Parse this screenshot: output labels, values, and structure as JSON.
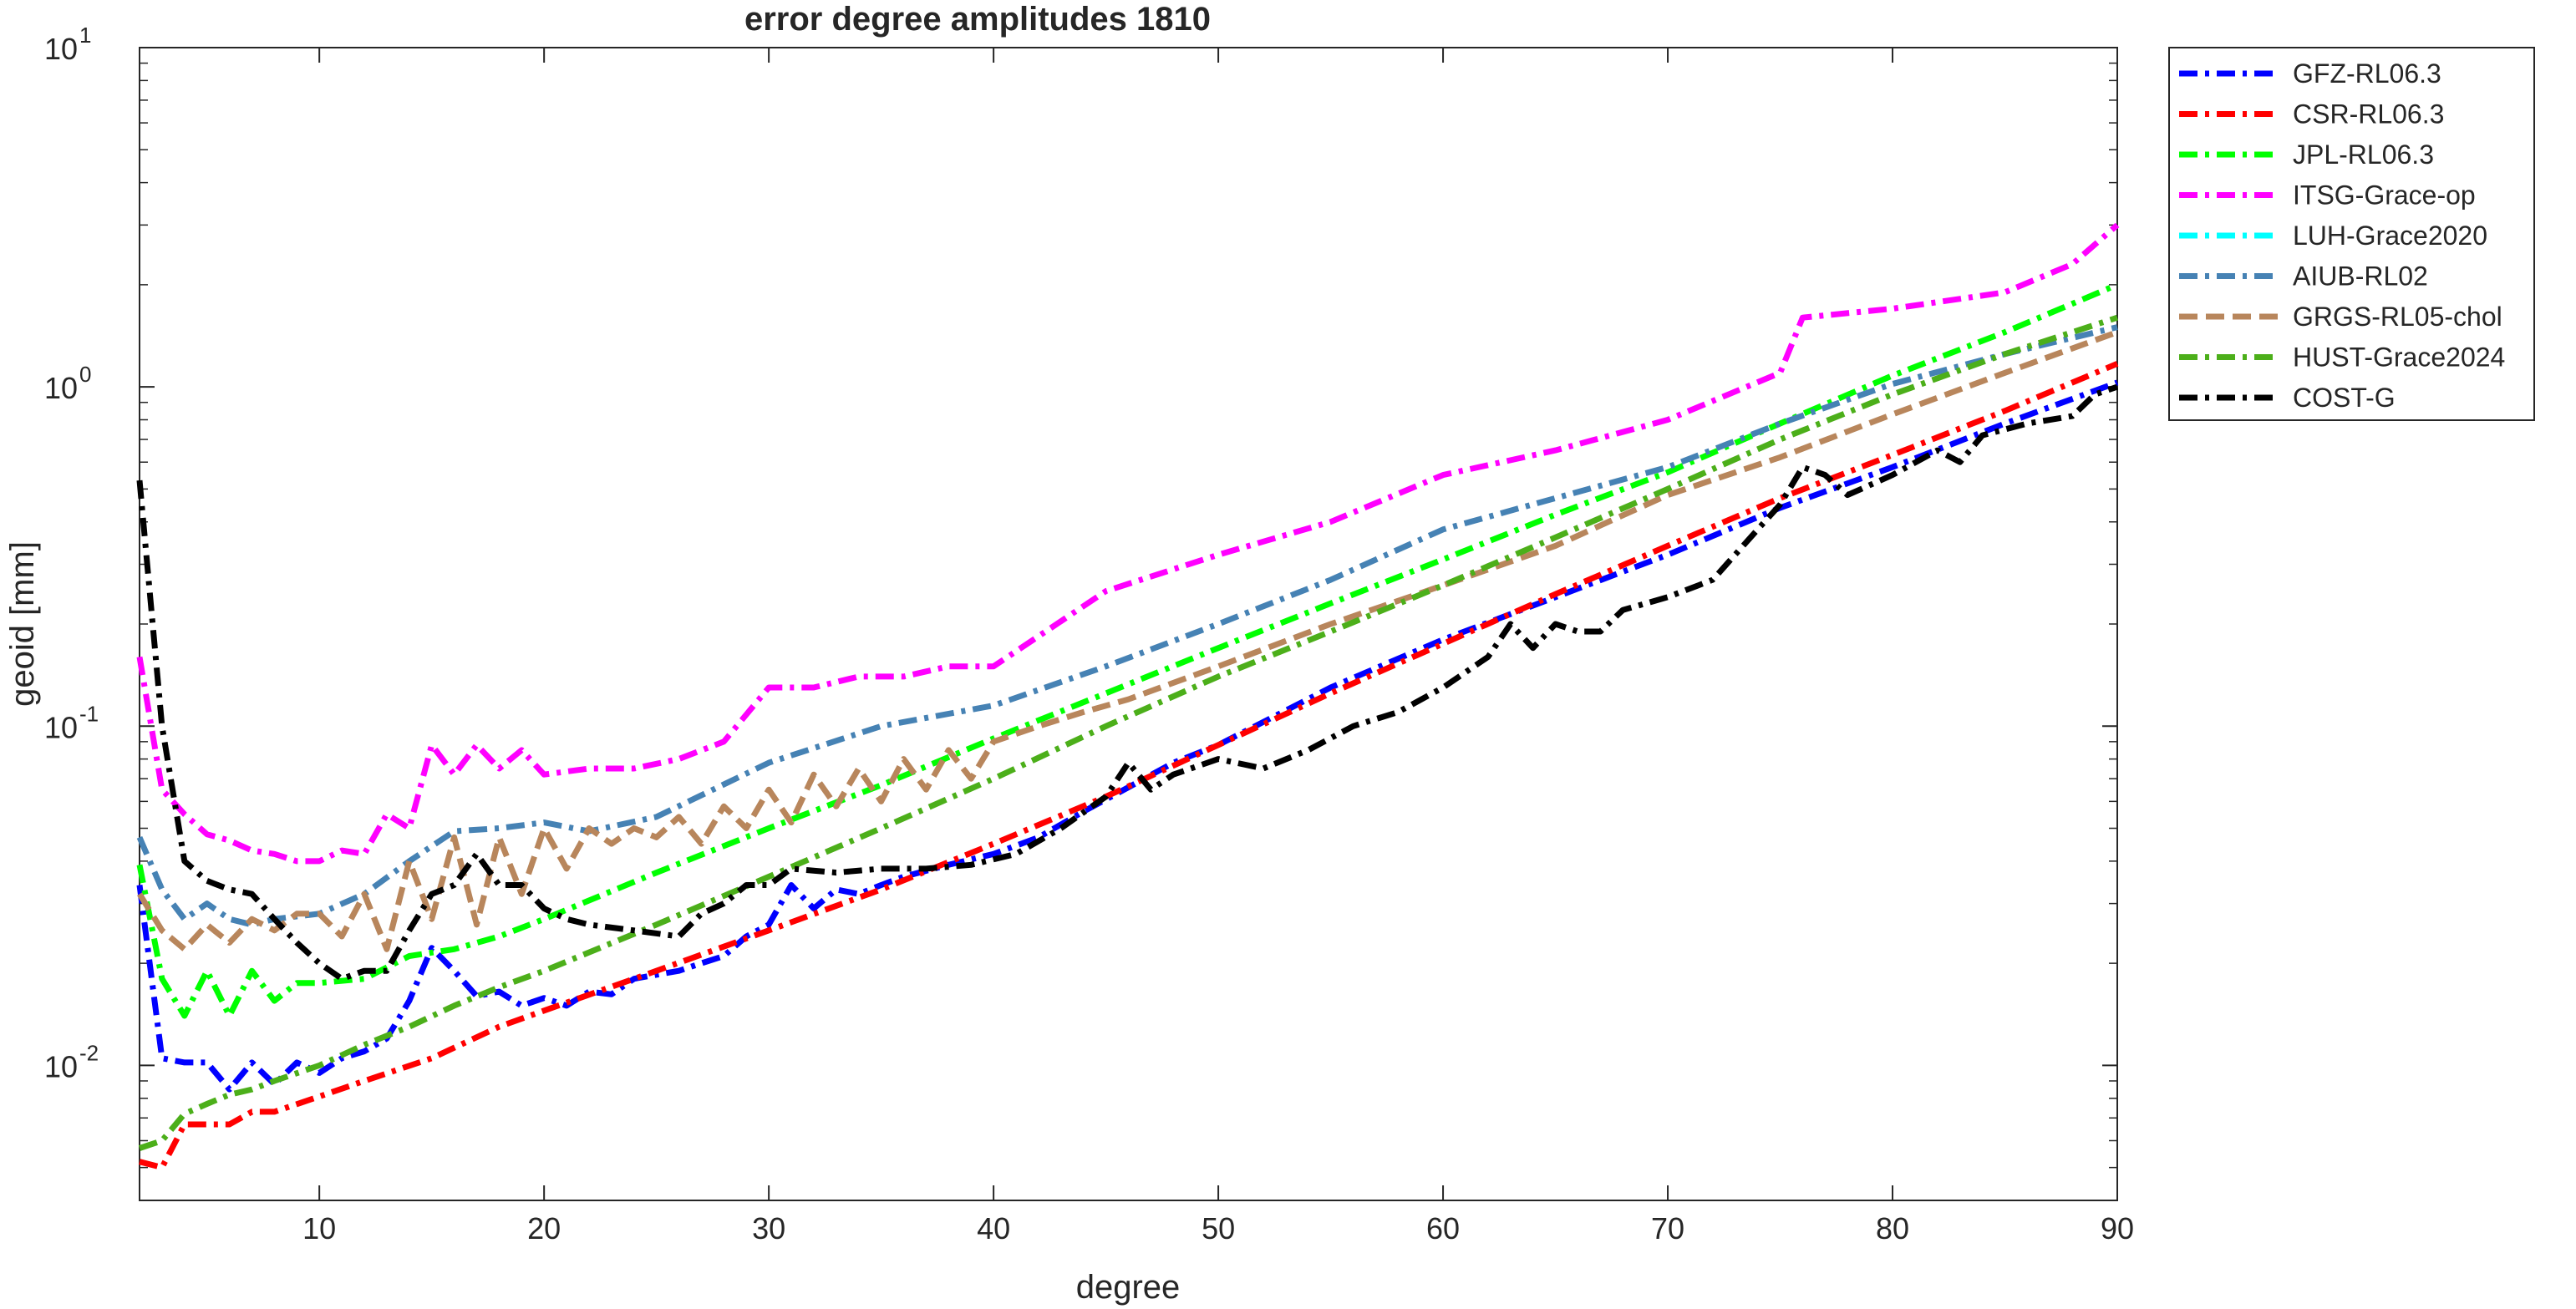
{
  "chart_data": {
    "type": "line",
    "title": "error degree amplitudes 1810",
    "xlabel": "degree",
    "ylabel": "geoid [mm]",
    "xlim": [
      2,
      90
    ],
    "ylim": [
      0.004,
      10
    ],
    "yscale": "log",
    "grid": false,
    "legend_position": "outside-top-right",
    "x_ticks": [
      10,
      20,
      30,
      40,
      50,
      60,
      70,
      80,
      90
    ],
    "y_ticks": [
      {
        "value": 0.01,
        "base": "10",
        "exp": "-2"
      },
      {
        "value": 0.1,
        "base": "10",
        "exp": "-1"
      },
      {
        "value": 1,
        "base": "10",
        "exp": "0"
      },
      {
        "value": 10,
        "base": "10",
        "exp": "1"
      }
    ],
    "series": [
      {
        "name": "GFZ-RL06.3",
        "color": "#0000ff",
        "dash": "dashdot",
        "x": [
          2,
          3,
          4,
          5,
          6,
          7,
          8,
          9,
          10,
          11,
          12,
          13,
          14,
          15,
          16,
          17,
          18,
          19,
          20,
          21,
          22,
          23,
          24,
          25,
          26,
          27,
          28,
          29,
          30,
          31,
          32,
          33,
          34,
          35,
          36,
          38,
          40,
          42,
          44,
          46,
          48,
          50,
          55,
          60,
          65,
          70,
          75,
          80,
          85,
          90
        ],
        "y": [
          0.034,
          0.0105,
          0.0102,
          0.0102,
          0.0085,
          0.0102,
          0.0088,
          0.0102,
          0.0095,
          0.0105,
          0.011,
          0.012,
          0.0155,
          0.0222,
          0.019,
          0.016,
          0.0165,
          0.015,
          0.0158,
          0.015,
          0.0165,
          0.0162,
          0.018,
          0.0185,
          0.019,
          0.02,
          0.021,
          0.024,
          0.026,
          0.034,
          0.029,
          0.033,
          0.032,
          0.034,
          0.036,
          0.039,
          0.042,
          0.047,
          0.056,
          0.066,
          0.078,
          0.088,
          0.13,
          0.18,
          0.24,
          0.32,
          0.44,
          0.58,
          0.78,
          1.03
        ]
      },
      {
        "name": "CSR-RL06.3",
        "color": "#ff0000",
        "dash": "dashdot",
        "x": [
          2,
          3,
          4,
          5,
          6,
          7,
          8,
          10,
          12,
          15,
          18,
          20,
          25,
          30,
          35,
          40,
          45,
          50,
          55,
          60,
          65,
          70,
          75,
          80,
          85,
          90
        ],
        "y": [
          0.0052,
          0.005,
          0.0067,
          0.0067,
          0.0067,
          0.0073,
          0.0073,
          0.0081,
          0.009,
          0.0105,
          0.013,
          0.0145,
          0.019,
          0.025,
          0.033,
          0.045,
          0.062,
          0.088,
          0.125,
          0.175,
          0.245,
          0.34,
          0.47,
          0.63,
          0.85,
          1.17
        ]
      },
      {
        "name": "JPL-RL06.3",
        "color": "#00ff00",
        "dash": "dashdot",
        "x": [
          2,
          3,
          4,
          5,
          6,
          7,
          8,
          9,
          10,
          12,
          14,
          16,
          18,
          20,
          25,
          30,
          35,
          40,
          45,
          50,
          55,
          60,
          65,
          70,
          75,
          80,
          85,
          90
        ],
        "y": [
          0.039,
          0.018,
          0.014,
          0.019,
          0.014,
          0.019,
          0.0155,
          0.0175,
          0.0175,
          0.018,
          0.021,
          0.022,
          0.024,
          0.027,
          0.037,
          0.05,
          0.067,
          0.092,
          0.125,
          0.17,
          0.23,
          0.31,
          0.42,
          0.56,
          0.78,
          1.08,
          1.45,
          2.0
        ]
      },
      {
        "name": "ITSG-Grace-op",
        "color": "#ff00ff",
        "dash": "dashdot",
        "x": [
          2,
          3,
          4,
          5,
          6,
          7,
          8,
          9,
          10,
          11,
          12,
          13,
          14,
          15,
          16,
          17,
          18,
          19,
          20,
          22,
          24,
          26,
          28,
          30,
          32,
          34,
          36,
          38,
          40,
          45,
          50,
          55,
          60,
          65,
          70,
          75,
          76,
          80,
          85,
          88,
          90
        ],
        "y": [
          0.16,
          0.065,
          0.055,
          0.048,
          0.046,
          0.043,
          0.042,
          0.04,
          0.04,
          0.043,
          0.042,
          0.055,
          0.05,
          0.088,
          0.072,
          0.088,
          0.075,
          0.085,
          0.072,
          0.075,
          0.075,
          0.08,
          0.09,
          0.13,
          0.13,
          0.14,
          0.14,
          0.15,
          0.15,
          0.25,
          0.32,
          0.4,
          0.55,
          0.65,
          0.8,
          1.1,
          1.6,
          1.7,
          1.9,
          2.3,
          3.0
        ]
      },
      {
        "name": "LUH-Grace2020",
        "color": "#00ffff",
        "dash": "dashdot",
        "x": [],
        "y": []
      },
      {
        "name": "AIUB-RL02",
        "color": "#4682b4",
        "dash": "dashdot",
        "x": [
          2,
          3,
          4,
          5,
          6,
          7,
          8,
          10,
          12,
          14,
          16,
          18,
          20,
          22,
          25,
          30,
          35,
          40,
          45,
          50,
          55,
          60,
          65,
          70,
          75,
          80,
          85,
          90
        ],
        "y": [
          0.047,
          0.033,
          0.027,
          0.03,
          0.027,
          0.026,
          0.027,
          0.028,
          0.032,
          0.04,
          0.049,
          0.05,
          0.052,
          0.049,
          0.054,
          0.078,
          0.1,
          0.115,
          0.15,
          0.2,
          0.27,
          0.38,
          0.47,
          0.58,
          0.78,
          1.02,
          1.25,
          1.5
        ]
      },
      {
        "name": "GRGS-RL05-chol",
        "color": "#b8865c",
        "dash": "dash",
        "x": [
          2,
          3,
          4,
          5,
          6,
          7,
          8,
          9,
          10,
          11,
          12,
          13,
          14,
          15,
          16,
          17,
          18,
          19,
          20,
          21,
          22,
          23,
          24,
          25,
          26,
          27,
          28,
          29,
          30,
          31,
          32,
          33,
          34,
          35,
          36,
          37,
          38,
          39,
          40,
          42,
          44,
          46,
          50,
          55,
          60,
          65,
          70,
          75,
          80,
          85,
          90
        ],
        "y": [
          0.032,
          0.025,
          0.022,
          0.026,
          0.023,
          0.027,
          0.025,
          0.028,
          0.028,
          0.024,
          0.032,
          0.022,
          0.04,
          0.027,
          0.047,
          0.026,
          0.047,
          0.032,
          0.05,
          0.038,
          0.05,
          0.045,
          0.05,
          0.047,
          0.054,
          0.045,
          0.058,
          0.05,
          0.065,
          0.052,
          0.072,
          0.058,
          0.075,
          0.06,
          0.08,
          0.065,
          0.085,
          0.07,
          0.09,
          0.1,
          0.11,
          0.12,
          0.15,
          0.2,
          0.26,
          0.34,
          0.48,
          0.62,
          0.83,
          1.1,
          1.45
        ]
      },
      {
        "name": "HUST-Grace2024",
        "color": "#4caf1a",
        "dash": "dashdot",
        "x": [
          2,
          3,
          4,
          5,
          6,
          7,
          8,
          10,
          12,
          14,
          16,
          18,
          20,
          25,
          30,
          35,
          40,
          45,
          50,
          55,
          60,
          65,
          70,
          75,
          80,
          85,
          90
        ],
        "y": [
          0.0057,
          0.006,
          0.0072,
          0.0077,
          0.0082,
          0.0085,
          0.009,
          0.01,
          0.0115,
          0.013,
          0.015,
          0.017,
          0.019,
          0.026,
          0.036,
          0.05,
          0.07,
          0.1,
          0.14,
          0.19,
          0.26,
          0.36,
          0.5,
          0.7,
          0.95,
          1.25,
          1.6
        ]
      },
      {
        "name": "COST-G",
        "color": "#000000",
        "dash": "dashdot",
        "x": [
          2,
          3,
          4,
          5,
          6,
          7,
          8,
          9,
          10,
          11,
          12,
          13,
          14,
          15,
          16,
          17,
          18,
          19,
          20,
          21,
          22,
          24,
          26,
          27,
          28,
          29,
          30,
          31,
          33,
          35,
          37,
          39,
          41,
          43,
          45,
          46,
          47,
          48,
          50,
          52,
          54,
          56,
          58,
          60,
          62,
          63,
          64,
          65,
          66,
          67,
          68,
          70,
          72,
          74,
          75,
          76,
          77,
          78,
          80,
          82,
          83,
          84,
          86,
          88,
          89,
          90
        ],
        "y": [
          0.53,
          0.1,
          0.04,
          0.035,
          0.033,
          0.032,
          0.027,
          0.023,
          0.02,
          0.018,
          0.019,
          0.019,
          0.025,
          0.032,
          0.034,
          0.042,
          0.034,
          0.034,
          0.029,
          0.027,
          0.026,
          0.025,
          0.024,
          0.028,
          0.03,
          0.034,
          0.034,
          0.038,
          0.037,
          0.038,
          0.038,
          0.039,
          0.042,
          0.05,
          0.062,
          0.078,
          0.065,
          0.072,
          0.08,
          0.075,
          0.085,
          0.1,
          0.11,
          0.13,
          0.16,
          0.2,
          0.17,
          0.2,
          0.19,
          0.19,
          0.22,
          0.24,
          0.27,
          0.38,
          0.45,
          0.58,
          0.55,
          0.48,
          0.55,
          0.65,
          0.6,
          0.72,
          0.78,
          0.82,
          0.95,
          1.0
        ]
      }
    ]
  }
}
